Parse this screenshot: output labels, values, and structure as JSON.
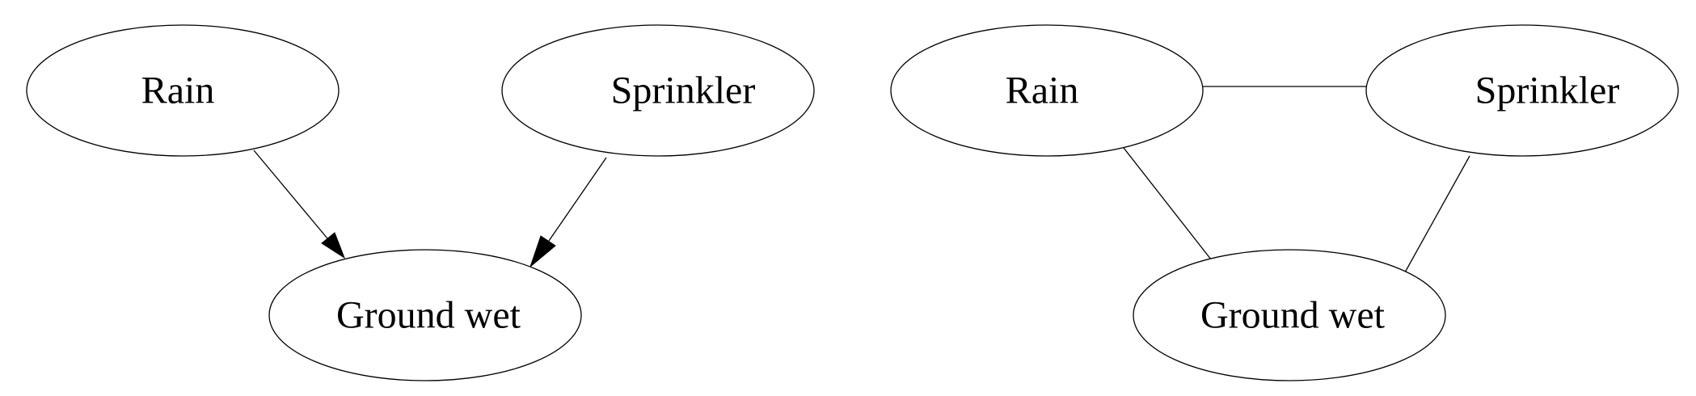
{
  "diagrams": [
    {
      "kind": "directed",
      "nodes": [
        {
          "id": "rain",
          "label": "Rain"
        },
        {
          "id": "sprinkler",
          "label": "Sprinkler"
        },
        {
          "id": "ground",
          "label": "Ground wet"
        }
      ],
      "edges": [
        {
          "from": "rain",
          "to": "ground"
        },
        {
          "from": "sprinkler",
          "to": "ground"
        }
      ]
    },
    {
      "kind": "undirected",
      "nodes": [
        {
          "id": "rain",
          "label": "Rain"
        },
        {
          "id": "sprinkler",
          "label": "Sprinkler"
        },
        {
          "id": "ground",
          "label": "Ground wet"
        }
      ],
      "edges": [
        {
          "from": "rain",
          "to": "sprinkler"
        },
        {
          "from": "rain",
          "to": "ground"
        },
        {
          "from": "sprinkler",
          "to": "ground"
        }
      ]
    }
  ]
}
